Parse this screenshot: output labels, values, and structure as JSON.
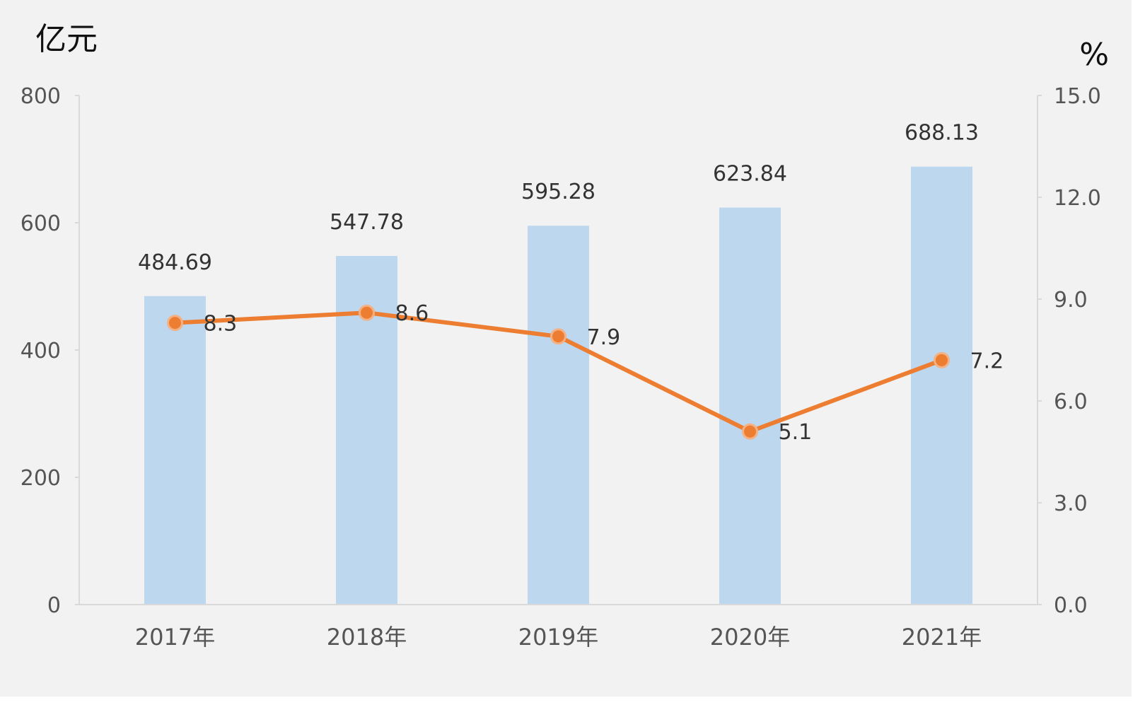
{
  "chart_data": {
    "type": "bar",
    "title": "",
    "categories": [
      "2017年",
      "2018年",
      "2019年",
      "2020年",
      "2021年"
    ],
    "y_left_unit": "亿元",
    "y_right_unit": "%",
    "ylim_left": [
      0,
      800
    ],
    "ylim_right": [
      0,
      15
    ],
    "y_left_ticks": [
      0,
      200,
      400,
      600,
      800
    ],
    "y_right_ticks": [
      0,
      3,
      6,
      9,
      12,
      15
    ],
    "y_left_tick_labels": [
      "0",
      "200",
      "400",
      "600",
      "800"
    ],
    "y_right_tick_labels": [
      "0.0",
      "3.0",
      "6.0",
      "9.0",
      "12.0",
      "15.0"
    ],
    "bars": {
      "values": [
        484.69,
        547.78,
        595.28,
        623.84,
        688.13
      ],
      "labels": [
        "484.69",
        "547.78",
        "595.28",
        "623.84",
        "688.13"
      ],
      "color": "#bdd7ee",
      "axis": "left"
    },
    "line": {
      "values": [
        8.3,
        8.6,
        7.9,
        5.1,
        7.2
      ],
      "labels": [
        "8.3",
        "8.6",
        "7.9",
        "5.1",
        "7.2"
      ],
      "color": "#ed7d31",
      "axis": "right"
    },
    "legend": "none",
    "grid": false
  }
}
